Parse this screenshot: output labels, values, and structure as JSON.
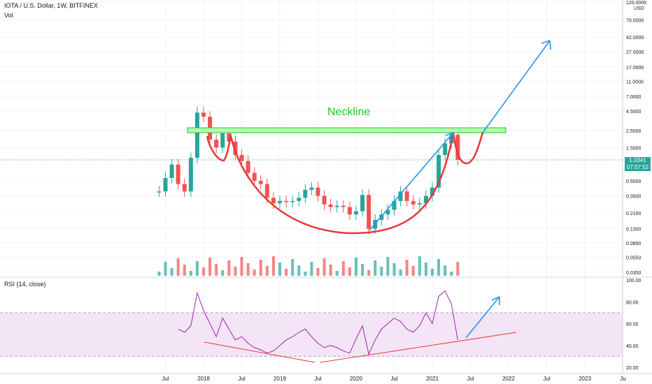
{
  "header": {
    "title": "IOTA / U.S. Dollar, 1W, BITFINEX",
    "volume_label": "Vol",
    "rsi_label": "RSI (14, close)",
    "currency": "USD"
  },
  "annotation": {
    "neckline": "Neckline"
  },
  "price_tag": {
    "price": "1.0341",
    "countdown": "07:07:52",
    "color": "#26a69a"
  },
  "colors": {
    "up": "#26a69a",
    "down": "#ef5350",
    "neckline": "#1ec91e",
    "cup": "#e53935",
    "arrow": "#2196f3",
    "rsi_line": "#9c27b0",
    "rsi_band": "#f3e5f5"
  },
  "chart_data": [
    {
      "type": "line",
      "title": "IOTA / U.S. Dollar, 1W, BITFINEX",
      "scale": "log",
      "y_ticks": [
        "120.0000",
        "70.0000",
        "42.0000",
        "27.0000",
        "17.0000",
        "11.0000",
        "7.0000",
        "4.5000",
        "2.5000",
        "1.5000",
        "0.5500",
        "0.3500",
        "0.2100",
        "0.1300",
        "0.0850",
        "0.0550",
        "0.0350"
      ],
      "x_ticks": [
        "Jul",
        "2018",
        "Jul",
        "2019",
        "Jul",
        "2020",
        "Jul",
        "2021",
        "Jul",
        "2022",
        "Jul",
        "2023",
        "Ju"
      ],
      "neckline": 2.5,
      "last_price": 1.0341,
      "series": [
        {
          "x": [
            "2017-06",
            "2017-07",
            "2017-08",
            "2017-09",
            "2017-10",
            "2017-11",
            "2017-12",
            "2018-01",
            "2018-02",
            "2018-03",
            "2018-04",
            "2018-05",
            "2018-06",
            "2018-07",
            "2018-08",
            "2018-09",
            "2018-10",
            "2018-11",
            "2018-12",
            "2019-01",
            "2019-02",
            "2019-03",
            "2019-04",
            "2019-05",
            "2019-06",
            "2019-07",
            "2019-08",
            "2019-09",
            "2019-10",
            "2019-11",
            "2019-12",
            "2020-01",
            "2020-02",
            "2020-03",
            "2020-04",
            "2020-05",
            "2020-06",
            "2020-07",
            "2020-08",
            "2020-09",
            "2020-10",
            "2020-11",
            "2020-12",
            "2021-01",
            "2021-02",
            "2021-03",
            "2021-04",
            "2021-05"
          ],
          "values": [
            0.4,
            0.6,
            0.9,
            0.5,
            0.4,
            1.1,
            4.3,
            3.8,
            1.9,
            1.5,
            2.3,
            1.8,
            1.2,
            1.0,
            0.7,
            0.55,
            0.5,
            0.33,
            0.28,
            0.3,
            0.29,
            0.3,
            0.33,
            0.42,
            0.45,
            0.35,
            0.27,
            0.25,
            0.26,
            0.25,
            0.2,
            0.22,
            0.36,
            0.13,
            0.17,
            0.2,
            0.23,
            0.3,
            0.4,
            0.3,
            0.27,
            0.28,
            0.35,
            0.45,
            1.2,
            1.7,
            2.2,
            1.0341
          ]
        }
      ]
    },
    {
      "type": "line",
      "title": "RSI (14, close)",
      "y_ticks": [
        "100.00",
        "80.00",
        "60.00",
        "40.00",
        "20.00"
      ],
      "ylim": [
        20,
        100
      ],
      "band": [
        30,
        70
      ],
      "series": [
        {
          "x": [
            "2017-09",
            "2017-10",
            "2017-11",
            "2017-12",
            "2018-01",
            "2018-02",
            "2018-03",
            "2018-04",
            "2018-05",
            "2018-06",
            "2018-07",
            "2018-08",
            "2018-09",
            "2018-10",
            "2018-11",
            "2018-12",
            "2019-01",
            "2019-02",
            "2019-03",
            "2019-04",
            "2019-05",
            "2019-06",
            "2019-07",
            "2019-08",
            "2019-09",
            "2019-10",
            "2019-11",
            "2019-12",
            "2020-01",
            "2020-02",
            "2020-03",
            "2020-04",
            "2020-05",
            "2020-06",
            "2020-07",
            "2020-08",
            "2020-09",
            "2020-10",
            "2020-11",
            "2020-12",
            "2021-01",
            "2021-02",
            "2021-03",
            "2021-04",
            "2021-05"
          ],
          "values": [
            55,
            52,
            58,
            88,
            72,
            60,
            48,
            65,
            55,
            45,
            48,
            42,
            38,
            36,
            33,
            35,
            40,
            45,
            48,
            52,
            55,
            48,
            42,
            38,
            40,
            38,
            35,
            33,
            46,
            58,
            32,
            45,
            55,
            60,
            65,
            62,
            55,
            52,
            58,
            70,
            60,
            85,
            90,
            78,
            45
          ]
        }
      ]
    }
  ]
}
